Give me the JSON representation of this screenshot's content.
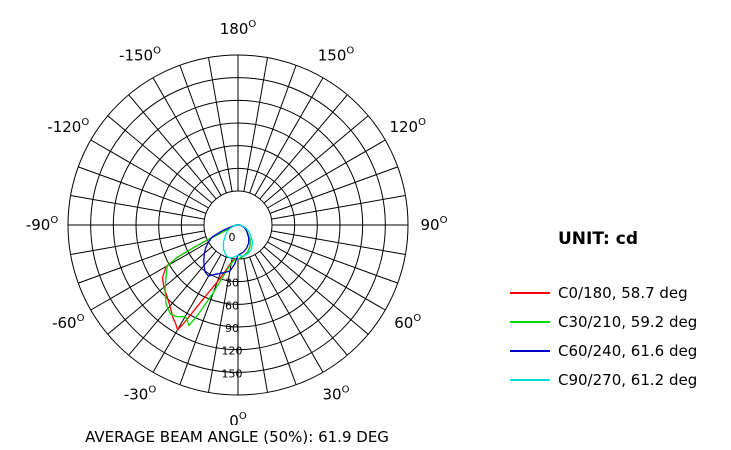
{
  "chart_data": {
    "type": "polar",
    "unit_label": "UNIT: cd",
    "footer": "AVERAGE BEAM ANGLE (50%): 61.9 DEG",
    "angle_labels": [
      {
        "value": "180",
        "angle": 180
      },
      {
        "value": "150",
        "angle": 150
      },
      {
        "value": "-150",
        "angle": -150
      },
      {
        "value": "120",
        "angle": 120
      },
      {
        "value": "-120",
        "angle": -120
      },
      {
        "value": "90",
        "angle": 90
      },
      {
        "value": "-90",
        "angle": -90
      },
      {
        "value": "60",
        "angle": 60
      },
      {
        "value": "-60",
        "angle": -60
      },
      {
        "value": "30",
        "angle": 30
      },
      {
        "value": "-30",
        "angle": -30
      },
      {
        "value": "0",
        "angle": 0
      }
    ],
    "degree_mark": "O",
    "radial_ticks": [
      "0",
      "30",
      "60",
      "90",
      "120",
      "150"
    ],
    "rmax": 180,
    "series": [
      {
        "name": "C0/180, 58.7 deg",
        "color": "#ff0000",
        "points": [
          [
            0,
            45
          ],
          [
            -5,
            45
          ],
          [
            -10,
            50
          ],
          [
            -15,
            62
          ],
          [
            -20,
            80
          ],
          [
            -24,
            100
          ],
          [
            -27,
            125
          ],
          [
            -29,
            150
          ],
          [
            -30,
            160
          ],
          [
            -32,
            155
          ],
          [
            -35,
            150
          ],
          [
            -40,
            140
          ],
          [
            -45,
            133
          ],
          [
            -50,
            128
          ],
          [
            -55,
            122
          ],
          [
            -60,
            110
          ],
          [
            -62,
            90
          ],
          [
            -63,
            65
          ],
          [
            -64,
            45
          ],
          [
            -65,
            25
          ],
          [
            -70,
            10
          ],
          [
            -80,
            4
          ],
          [
            -90,
            2
          ],
          [
            -100,
            1
          ],
          [
            -120,
            0
          ],
          [
            -180,
            0
          ],
          [
            120,
            0
          ],
          [
            100,
            1
          ],
          [
            90,
            2
          ],
          [
            80,
            4
          ],
          [
            70,
            8
          ],
          [
            60,
            12
          ],
          [
            50,
            16
          ],
          [
            40,
            25
          ],
          [
            30,
            32
          ],
          [
            20,
            38
          ],
          [
            10,
            42
          ],
          [
            0,
            45
          ]
        ]
      },
      {
        "name": "C30/210, 59.2 deg",
        "color": "#00dd00",
        "points": [
          [
            0,
            45
          ],
          [
            -5,
            46
          ],
          [
            -10,
            52
          ],
          [
            -15,
            66
          ],
          [
            -20,
            95
          ],
          [
            -24,
            130
          ],
          [
            -26,
            148
          ],
          [
            -28,
            143
          ],
          [
            -30,
            140
          ],
          [
            -33,
            145
          ],
          [
            -37,
            148
          ],
          [
            -42,
            142
          ],
          [
            -48,
            130
          ],
          [
            -54,
            118
          ],
          [
            -60,
            108
          ],
          [
            -62,
            90
          ],
          [
            -63,
            65
          ],
          [
            -64,
            45
          ],
          [
            -65,
            25
          ],
          [
            -70,
            10
          ],
          [
            -80,
            4
          ],
          [
            -90,
            2
          ],
          [
            -100,
            1
          ],
          [
            -120,
            0
          ],
          [
            -180,
            0
          ],
          [
            120,
            0
          ],
          [
            100,
            1
          ],
          [
            90,
            2
          ],
          [
            80,
            4
          ],
          [
            70,
            8
          ],
          [
            60,
            12
          ],
          [
            50,
            16
          ],
          [
            40,
            25
          ],
          [
            30,
            32
          ],
          [
            20,
            38
          ],
          [
            10,
            42
          ],
          [
            0,
            45
          ]
        ]
      },
      {
        "name": "C60/240, 61.6 deg",
        "color": "#0000cc",
        "points": [
          [
            0,
            40
          ],
          [
            -5,
            52
          ],
          [
            -10,
            62
          ],
          [
            -15,
            65
          ],
          [
            -20,
            68
          ],
          [
            -25,
            72
          ],
          [
            -30,
            78
          ],
          [
            -35,
            76
          ],
          [
            -40,
            70
          ],
          [
            -45,
            64
          ],
          [
            -50,
            58
          ],
          [
            -55,
            52
          ],
          [
            -60,
            45
          ],
          [
            -65,
            38
          ],
          [
            -70,
            22
          ],
          [
            -75,
            10
          ],
          [
            -80,
            4
          ],
          [
            -90,
            2
          ],
          [
            -100,
            1
          ],
          [
            -120,
            0
          ],
          [
            -180,
            0
          ],
          [
            120,
            0
          ],
          [
            100,
            1
          ],
          [
            90,
            2
          ],
          [
            80,
            4
          ],
          [
            70,
            8
          ],
          [
            60,
            12
          ],
          [
            50,
            16
          ],
          [
            40,
            22
          ],
          [
            30,
            28
          ],
          [
            20,
            33
          ],
          [
            10,
            37
          ],
          [
            0,
            40
          ]
        ]
      },
      {
        "name": "C90/270, 61.2 deg",
        "color": "#00dddd",
        "points": [
          [
            0,
            40
          ],
          [
            -5,
            42
          ],
          [
            -10,
            44
          ],
          [
            -15,
            45
          ],
          [
            -20,
            44
          ],
          [
            -30,
            38
          ],
          [
            -40,
            30
          ],
          [
            -50,
            22
          ],
          [
            -60,
            16
          ],
          [
            -70,
            10
          ],
          [
            -80,
            5
          ],
          [
            -90,
            2
          ],
          [
            -100,
            1
          ],
          [
            -120,
            0
          ],
          [
            -180,
            0
          ],
          [
            120,
            0
          ],
          [
            100,
            1
          ],
          [
            90,
            3
          ],
          [
            80,
            5
          ],
          [
            70,
            10
          ],
          [
            60,
            16
          ],
          [
            50,
            22
          ],
          [
            40,
            30
          ],
          [
            30,
            36
          ],
          [
            20,
            40
          ],
          [
            10,
            42
          ],
          [
            0,
            40
          ]
        ]
      }
    ]
  }
}
